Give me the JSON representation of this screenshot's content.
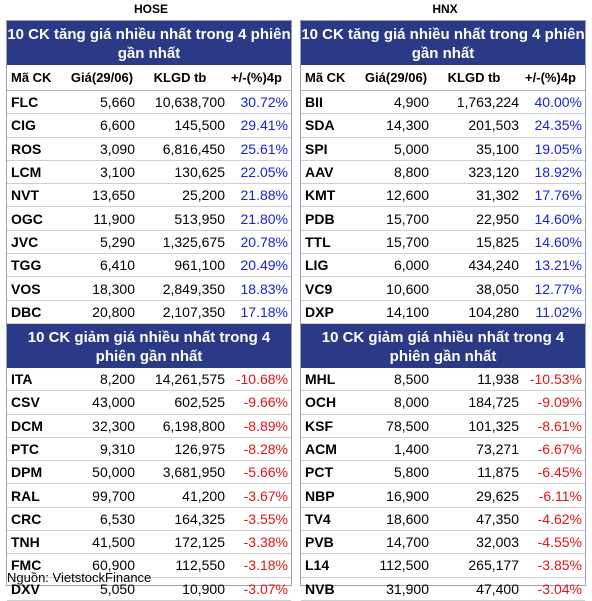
{
  "hose": {
    "label": "HOSE",
    "gain_title": "10 CK tăng giá nhiều nhất trong 4 phiên gần nhất",
    "loss_title": "10 CK giảm giá nhiều nhất trong 4 phiên gần nhất",
    "columns": [
      "Mã CK",
      "Giá(29/06)",
      "KLGD tb",
      "+/-(%)4p"
    ],
    "gainers": [
      {
        "code": "FLC",
        "price": "5,660",
        "volume": "10,638,700",
        "pct": "30.72%"
      },
      {
        "code": "CIG",
        "price": "6,600",
        "volume": "145,500",
        "pct": "29.41%"
      },
      {
        "code": "ROS",
        "price": "3,090",
        "volume": "6,816,450",
        "pct": "25.61%"
      },
      {
        "code": "LCM",
        "price": "3,100",
        "volume": "130,625",
        "pct": "22.05%"
      },
      {
        "code": "NVT",
        "price": "13,650",
        "volume": "25,200",
        "pct": "21.88%"
      },
      {
        "code": "OGC",
        "price": "11,900",
        "volume": "513,950",
        "pct": "21.80%"
      },
      {
        "code": "JVC",
        "price": "5,290",
        "volume": "1,325,675",
        "pct": "20.78%"
      },
      {
        "code": "TGG",
        "price": "6,410",
        "volume": "961,100",
        "pct": "20.49%"
      },
      {
        "code": "VOS",
        "price": "18,300",
        "volume": "2,849,350",
        "pct": "18.83%"
      },
      {
        "code": "DBC",
        "price": "20,800",
        "volume": "2,107,350",
        "pct": "17.18%"
      }
    ],
    "losers": [
      {
        "code": "ITA",
        "price": "8,200",
        "volume": "14,261,575",
        "pct": "-10.68%"
      },
      {
        "code": "CSV",
        "price": "43,000",
        "volume": "602,525",
        "pct": "-9.66%"
      },
      {
        "code": "DCM",
        "price": "32,300",
        "volume": "6,198,800",
        "pct": "-8.89%"
      },
      {
        "code": "PTC",
        "price": "9,310",
        "volume": "126,975",
        "pct": "-8.28%"
      },
      {
        "code": "DPM",
        "price": "50,000",
        "volume": "3,681,950",
        "pct": "-5.66%"
      },
      {
        "code": "RAL",
        "price": "99,700",
        "volume": "41,200",
        "pct": "-3.67%"
      },
      {
        "code": "CRC",
        "price": "6,530",
        "volume": "164,325",
        "pct": "-3.55%"
      },
      {
        "code": "TNH",
        "price": "41,500",
        "volume": "172,125",
        "pct": "-3.38%"
      },
      {
        "code": "FMC",
        "price": "60,900",
        "volume": "112,550",
        "pct": "-3.18%"
      },
      {
        "code": "DXV",
        "price": "5,050",
        "volume": "10,900",
        "pct": "-3.07%"
      }
    ]
  },
  "hnx": {
    "label": "HNX",
    "gain_title": "10 CK tăng giá nhiều nhất trong 4 phiên gần nhất",
    "loss_title": "10 CK giảm giá nhiều nhất trong 4 phiên gần nhất",
    "columns": [
      "Mã CK",
      "Giá(29/06)",
      "KLGD tb",
      "+/-(%)4p"
    ],
    "gainers": [
      {
        "code": "BII",
        "price": "4,900",
        "volume": "1,763,224",
        "pct": "40.00%"
      },
      {
        "code": "SDA",
        "price": "14,300",
        "volume": "201,503",
        "pct": "24.35%"
      },
      {
        "code": "SPI",
        "price": "5,000",
        "volume": "35,100",
        "pct": "19.05%"
      },
      {
        "code": "AAV",
        "price": "8,800",
        "volume": "323,120",
        "pct": "18.92%"
      },
      {
        "code": "KMT",
        "price": "12,600",
        "volume": "31,302",
        "pct": "17.76%"
      },
      {
        "code": "PDB",
        "price": "15,700",
        "volume": "22,950",
        "pct": "14.60%"
      },
      {
        "code": "TTL",
        "price": "15,700",
        "volume": "15,825",
        "pct": "14.60%"
      },
      {
        "code": "LIG",
        "price": "6,000",
        "volume": "434,240",
        "pct": "13.21%"
      },
      {
        "code": "VC9",
        "price": "10,600",
        "volume": "38,050",
        "pct": "12.77%"
      },
      {
        "code": "DXP",
        "price": "14,100",
        "volume": "104,280",
        "pct": "11.02%"
      }
    ],
    "losers": [
      {
        "code": "MHL",
        "price": "8,500",
        "volume": "11,938",
        "pct": "-10.53%"
      },
      {
        "code": "OCH",
        "price": "8,000",
        "volume": "184,725",
        "pct": "-9.09%"
      },
      {
        "code": "KSF",
        "price": "78,500",
        "volume": "101,325",
        "pct": "-8.61%"
      },
      {
        "code": "ACM",
        "price": "1,400",
        "volume": "73,271",
        "pct": "-6.67%"
      },
      {
        "code": "PCT",
        "price": "5,800",
        "volume": "11,875",
        "pct": "-6.45%"
      },
      {
        "code": "NBP",
        "price": "16,900",
        "volume": "29,625",
        "pct": "-6.11%"
      },
      {
        "code": "TV4",
        "price": "18,600",
        "volume": "47,350",
        "pct": "-4.62%"
      },
      {
        "code": "PVB",
        "price": "14,700",
        "volume": "32,003",
        "pct": "-4.55%"
      },
      {
        "code": "L14",
        "price": "112,500",
        "volume": "265,177",
        "pct": "-3.85%"
      },
      {
        "code": "NVB",
        "price": "31,900",
        "volume": "47,400",
        "pct": "-3.04%"
      }
    ]
  },
  "source": "Nguồn: VietstockFinance",
  "colors": {
    "header_bg": "#2b3a86",
    "gain": "#1a22d6",
    "loss": "#e0151a"
  }
}
